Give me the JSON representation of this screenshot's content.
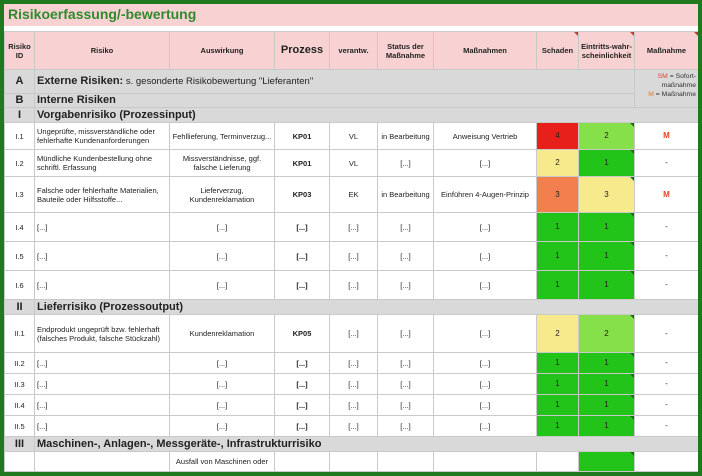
{
  "title": "Risikoerfassung/-bewertung",
  "header": {
    "risiko_id": "Risiko ID",
    "risiko": "Risiko",
    "auswirkung": "Auswirkung",
    "prozess": "Prozess",
    "verantw": "verantw.",
    "status": "Status der Maßnahme",
    "massnahmen": "Maßnahmen",
    "schaden": "Schaden",
    "eintritt": "Eintritts-wahr-scheinlichkeit",
    "massnahme": "Maßnahme"
  },
  "legend": {
    "sm_code": "SM",
    "sm_text": " = Sofort-maßnahme",
    "m_code": "M",
    "m_text": " = Maßnahme"
  },
  "sections": {
    "a": {
      "label": "A",
      "title": "Externe Risiken:",
      "subtitle": " s. gesonderte Risikobewertung \"Lieferanten\""
    },
    "b": {
      "label": "B",
      "title": "Interne Risiken"
    },
    "i": {
      "label": "I",
      "title": "Vorgabenrisiko (Prozessinput)"
    },
    "ii": {
      "label": "II",
      "title": "Lieferrisiko (Prozessoutput)"
    },
    "iii": {
      "label": "III",
      "title": "Maschinen-, Anlagen-, Messgeräte-, Infrastrukturrisiko"
    }
  },
  "colors": {
    "red": "#e8201c",
    "orange": "#f47f4e",
    "yellow": "#f7ea8c",
    "green": "#22c41a",
    "lightgreen": "#86e04a"
  },
  "rows_i": [
    {
      "id": "I.1",
      "risiko": "Ungeprüfte, missverständliche oder fehlerhafte Kundenanforderungen",
      "auswirkung": "Fehllieferung, Terminverzug...",
      "prozess": "KP01",
      "verantw": "VL",
      "status": "in Bearbeitung",
      "massnahmen": "Anweisung Vertrieb",
      "schaden": "4",
      "schaden_color": "red",
      "eintritt": "2",
      "eintritt_color": "lightgreen",
      "massnahme": "M",
      "height": 27
    },
    {
      "id": "I.2",
      "risiko": "Mündliche Kundenbestellung ohne schriftl. Erfassung",
      "auswirkung": "Missverständnisse, ggf. falsche Lieferung",
      "prozess": "KP01",
      "verantw": "VL",
      "status": "[...]",
      "massnahmen": "[...]",
      "schaden": "2",
      "schaden_color": "yellow",
      "eintritt": "1",
      "eintritt_color": "green",
      "massnahme": "-",
      "height": 27
    },
    {
      "id": "I.3",
      "risiko": "Falsche oder fehlerhafte Materialien, Bauteile oder Hilfsstoffe...",
      "auswirkung": "Lieferverzug, Kundenreklamation",
      "prozess": "KP03",
      "verantw": "EK",
      "status": "in Bearbeitung",
      "massnahmen": "Einführen 4-Augen-Prinzip",
      "schaden": "3",
      "schaden_color": "orange",
      "eintritt": "3",
      "eintritt_color": "yellow",
      "massnahme": "M",
      "height": 36
    },
    {
      "id": "I.4",
      "risiko": "[...]",
      "auswirkung": "[...]",
      "prozess": "[...]",
      "verantw": "[...]",
      "status": "[...]",
      "massnahmen": "[...]",
      "schaden": "1",
      "schaden_color": "green",
      "eintritt": "1",
      "eintritt_color": "green",
      "massnahme": "-",
      "height": 29
    },
    {
      "id": "I.5",
      "risiko": "[...]",
      "auswirkung": "[...]",
      "prozess": "[...]",
      "verantw": "[...]",
      "status": "[...]",
      "massnahmen": "[...]",
      "schaden": "1",
      "schaden_color": "green",
      "eintritt": "1",
      "eintritt_color": "green",
      "massnahme": "-",
      "height": 29
    },
    {
      "id": "I.6",
      "risiko": "[...]",
      "auswirkung": "[...]",
      "prozess": "[...]",
      "verantw": "[...]",
      "status": "[...]",
      "massnahmen": "[...]",
      "schaden": "1",
      "schaden_color": "green",
      "eintritt": "1",
      "eintritt_color": "green",
      "massnahme": "-",
      "height": 29
    }
  ],
  "rows_ii": [
    {
      "id": "II.1",
      "risiko": "Endprodukt ungeprüft bzw. fehlerhaft (falsches Produkt, falsche Stückzahl)",
      "auswirkung": "Kundenreklamation",
      "prozess": "KP05",
      "verantw": "[...]",
      "status": "[...]",
      "massnahmen": "[...]",
      "schaden": "2",
      "schaden_color": "yellow",
      "eintritt": "2",
      "eintritt_color": "lightgreen",
      "massnahme": "-",
      "height": 38
    },
    {
      "id": "II.2",
      "risiko": "[...]",
      "auswirkung": "[...]",
      "prozess": "[...]",
      "verantw": "[...]",
      "status": "[...]",
      "massnahmen": "[...]",
      "schaden": "1",
      "schaden_color": "green",
      "eintritt": "1",
      "eintritt_color": "green",
      "massnahme": "-",
      "height": 21
    },
    {
      "id": "II.3",
      "risiko": "[...]",
      "auswirkung": "[...]",
      "prozess": "[...]",
      "verantw": "[...]",
      "status": "[...]",
      "massnahmen": "[...]",
      "schaden": "1",
      "schaden_color": "green",
      "eintritt": "1",
      "eintritt_color": "green",
      "massnahme": "-",
      "height": 21
    },
    {
      "id": "II.4",
      "risiko": "[...]",
      "auswirkung": "[...]",
      "prozess": "[...]",
      "verantw": "[...]",
      "status": "[...]",
      "massnahmen": "[...]",
      "schaden": "1",
      "schaden_color": "green",
      "eintritt": "1",
      "eintritt_color": "green",
      "massnahme": "-",
      "height": 21
    },
    {
      "id": "II.5",
      "risiko": "[...]",
      "auswirkung": "[...]",
      "prozess": "[...]",
      "verantw": "[...]",
      "status": "[...]",
      "massnahmen": "[...]",
      "schaden": "1",
      "schaden_color": "green",
      "eintritt": "1",
      "eintritt_color": "green",
      "massnahme": "-",
      "height": 21
    }
  ],
  "rows_iii": [
    {
      "id": "",
      "risiko": "",
      "auswirkung": "Ausfall von Maschinen oder",
      "prozess": "",
      "verantw": "",
      "status": "",
      "massnahmen": "",
      "schaden": "",
      "schaden_color": "white",
      "eintritt": "",
      "eintritt_color": "green",
      "massnahme": "",
      "height": 20
    }
  ]
}
